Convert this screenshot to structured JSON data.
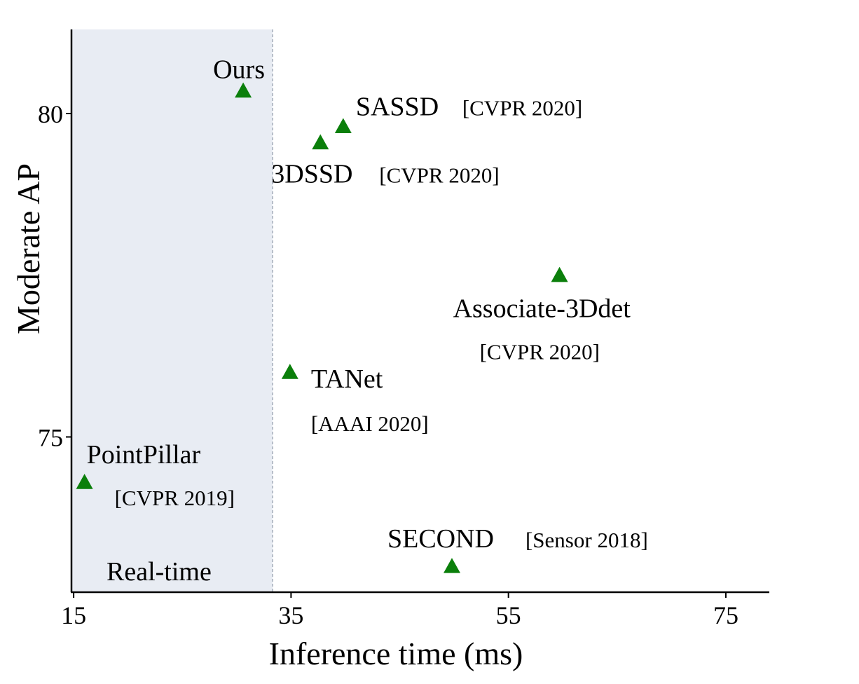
{
  "chart_data": {
    "type": "scatter",
    "title": "",
    "xlabel": "Inference time (ms)",
    "ylabel": "Moderate AP",
    "xlim": [
      14.8,
      79
    ],
    "ylim": [
      72.6,
      81.3
    ],
    "xticks": [
      15,
      35,
      55,
      75
    ],
    "yticks": [
      75,
      80
    ],
    "grid": false,
    "marker": "triangle",
    "marker_color": "#0b7f0b",
    "highlight_color": "#a82828",
    "region": {
      "label": "Real-time",
      "x_from": 14.8,
      "x_to": 33.3,
      "color": "#e8ecf3"
    },
    "points": [
      {
        "name": "Ours",
        "venue": "",
        "x": 30.6,
        "y": 80.35,
        "highlight": true
      },
      {
        "name": "SASSD",
        "venue": "[CVPR 2020]",
        "x": 39.8,
        "y": 79.8,
        "highlight": false
      },
      {
        "name": "3DSSD",
        "venue": "[CVPR 2020]",
        "x": 37.7,
        "y": 79.55,
        "highlight": false
      },
      {
        "name": "Associate-3Ddet",
        "venue": "[CVPR 2020]",
        "x": 59.7,
        "y": 77.5,
        "highlight": false
      },
      {
        "name": "TANet",
        "venue": "[AAAI 2020]",
        "x": 34.9,
        "y": 76.0,
        "highlight": false
      },
      {
        "name": "PointPillar",
        "venue": "[CVPR 2019]",
        "x": 16.0,
        "y": 74.3,
        "highlight": false
      },
      {
        "name": "SECOND",
        "venue": "[Sensor 2018]",
        "x": 49.8,
        "y": 73.0,
        "highlight": false
      }
    ]
  }
}
